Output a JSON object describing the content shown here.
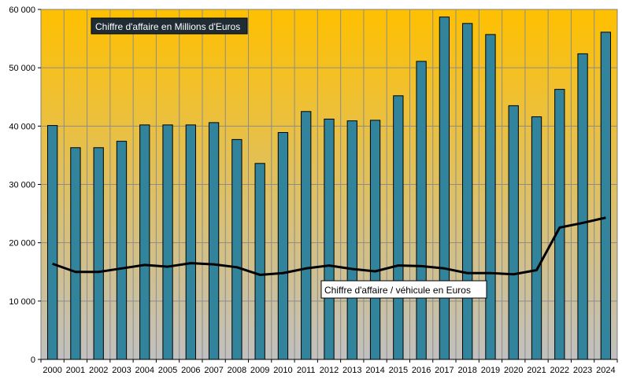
{
  "chart_data": {
    "type": "bar",
    "categories": [
      "2000",
      "2001",
      "2002",
      "2003",
      "2004",
      "2005",
      "2006",
      "2007",
      "2008",
      "2009",
      "2010",
      "2011",
      "2012",
      "2013",
      "2014",
      "2015",
      "2016",
      "2017",
      "2018",
      "2019",
      "2020",
      "2021",
      "2022",
      "2023",
      "2024"
    ],
    "series": [
      {
        "name": "Chiffre d'affaire en Millions d'Euros",
        "type": "bar",
        "color": "#31849b",
        "values": [
          40100,
          36300,
          36300,
          37400,
          40200,
          40200,
          40200,
          40600,
          37700,
          33600,
          38900,
          42500,
          41200,
          40900,
          41000,
          45200,
          51100,
          58700,
          57600,
          55700,
          43500,
          41600,
          46300,
          52400,
          56100
        ]
      },
      {
        "name": "Chiffre d'affaire / véhicule en Euros",
        "type": "line",
        "color": "#000000",
        "values": [
          16400,
          15000,
          15000,
          15600,
          16200,
          15900,
          16500,
          16300,
          15800,
          14500,
          14800,
          15600,
          16100,
          15500,
          15100,
          16100,
          16000,
          15600,
          14800,
          14800,
          14600,
          15300,
          22600,
          23400,
          24300
        ]
      }
    ],
    "ylim": [
      0,
      60000
    ],
    "yticks": [
      "0",
      "10 000",
      "20 000",
      "30 000",
      "40 000",
      "50 000",
      "60 000"
    ],
    "title": "",
    "xlabel": "",
    "ylabel": "",
    "grid": true,
    "background_gradient": [
      "#ffc000",
      "#c0c0c0"
    ]
  },
  "labels": {
    "bar_series": "Chiffre d'affaire en Millions d'Euros",
    "line_series": "Chiffre d'affaire / véhicule en Euros"
  }
}
